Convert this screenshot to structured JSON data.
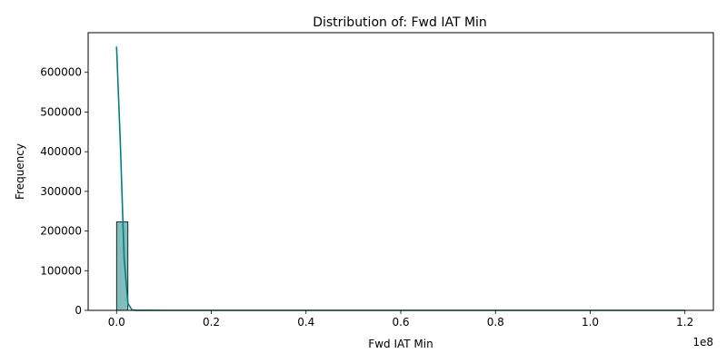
{
  "chart_data": {
    "type": "bar",
    "title": "Distribution of: Fwd IAT Min",
    "xlabel": "Fwd IAT Min",
    "ylabel": "Frequency",
    "x_offset_label": "1e8",
    "xlim": [
      -6000000,
      126000000
    ],
    "ylim": [
      0,
      700000
    ],
    "x_ticks": [
      0,
      0.2,
      0.4,
      0.6,
      0.8,
      1.0,
      1.2
    ],
    "x_tick_labels": [
      "0.0",
      "0.2",
      "0.4",
      "0.6",
      "0.8",
      "1.0",
      "1.2"
    ],
    "y_ticks": [
      0,
      100000,
      200000,
      300000,
      400000,
      500000,
      600000
    ],
    "y_tick_labels": [
      "0",
      "100000",
      "200000",
      "300000",
      "400000",
      "500000",
      "600000"
    ],
    "grid": false,
    "bins": {
      "start": 0,
      "width": 2400000,
      "counts": [
        223000,
        800,
        300,
        150,
        80,
        50,
        40,
        30,
        20,
        20,
        15,
        10,
        10,
        10,
        8,
        6,
        5,
        5,
        4,
        4,
        3,
        3,
        2,
        2,
        2,
        2,
        1,
        1,
        1,
        1,
        1,
        1,
        1,
        1,
        1,
        1,
        1,
        1,
        1,
        1,
        1,
        1,
        1,
        1,
        1,
        1,
        1,
        1,
        1,
        5
      ]
    },
    "kde": {
      "x": [
        0,
        800000,
        1600000,
        2400000,
        3200000,
        4000000,
        6000000,
        10000000,
        20000000,
        40000000,
        60000000,
        80000000,
        100000000,
        120000000
      ],
      "y": [
        665000,
        420000,
        130000,
        18000,
        1500,
        200,
        50,
        20,
        10,
        5,
        3,
        2,
        2,
        3
      ]
    },
    "colors": {
      "bar_fill": "#80bdbc",
      "bar_edge": "#000000",
      "kde_line": "#008080"
    }
  }
}
